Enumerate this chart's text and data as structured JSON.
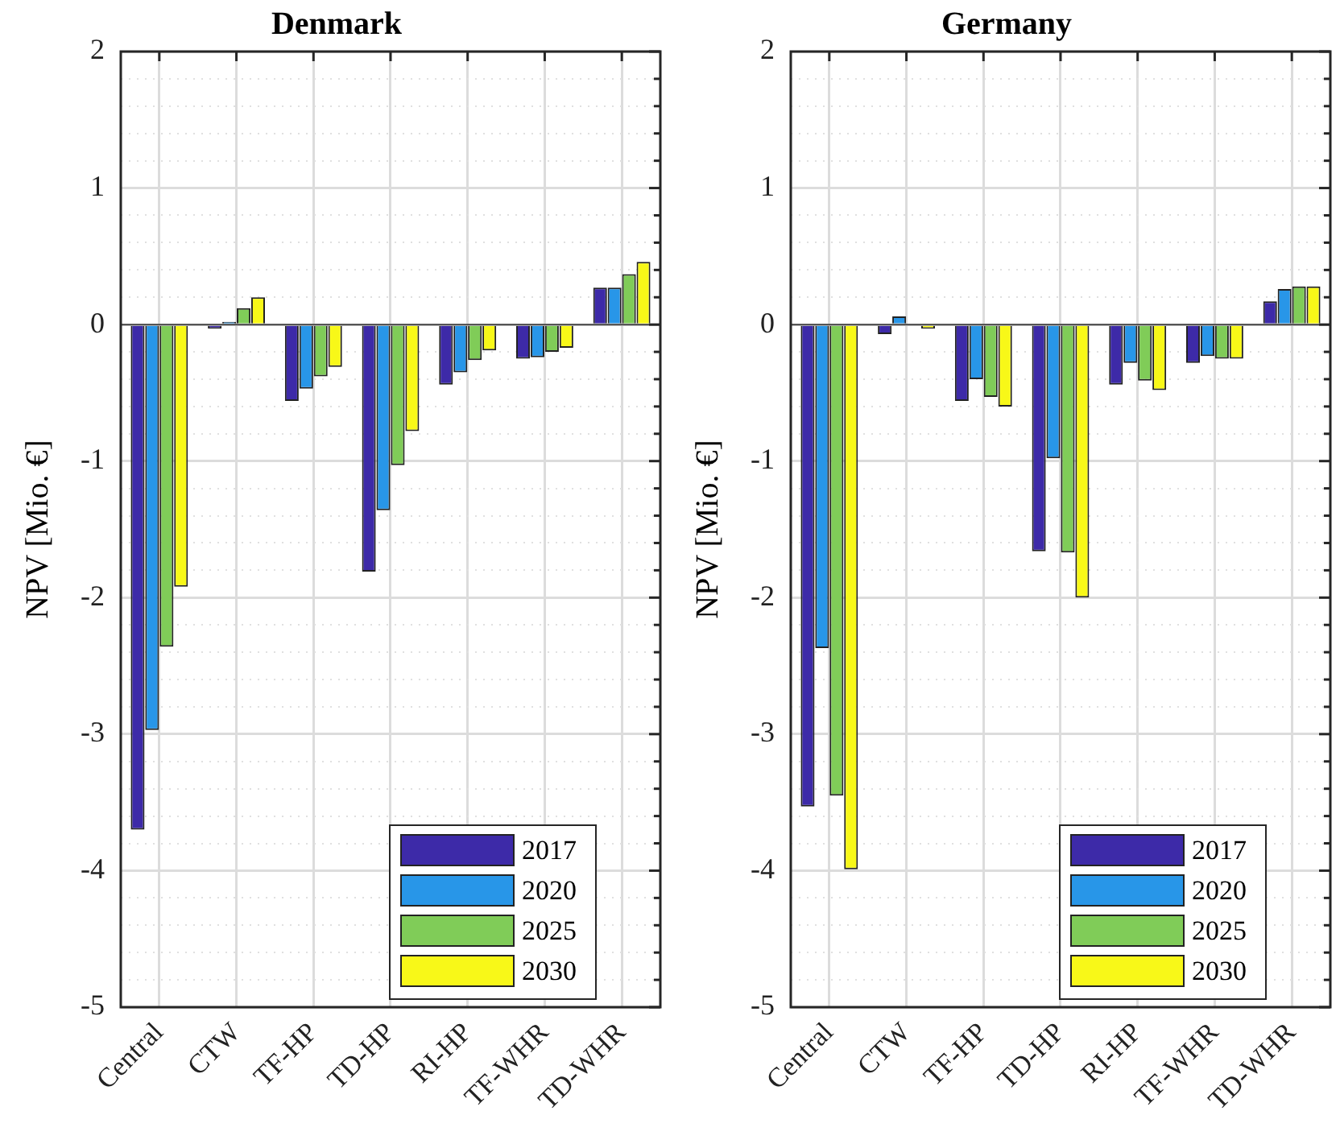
{
  "chart_data": [
    {
      "type": "bar",
      "title": "Denmark",
      "ylabel": "NPV [Mio. €]",
      "categories": [
        "Central",
        "CTW",
        "TF-HP",
        "TD-HP",
        "RI-HP",
        "TF-WHR",
        "TD-WHR"
      ],
      "series": [
        {
          "name": "2017",
          "color": "#3d2aa8",
          "values": [
            -3.7,
            -0.03,
            -0.56,
            -1.81,
            -0.44,
            -0.25,
            0.27
          ]
        },
        {
          "name": "2020",
          "color": "#2896e8",
          "values": [
            -2.97,
            0.02,
            -0.47,
            -1.36,
            -0.35,
            -0.24,
            0.27
          ]
        },
        {
          "name": "2025",
          "color": "#80cc58",
          "values": [
            -2.36,
            0.12,
            -0.38,
            -1.03,
            -0.26,
            -0.2,
            0.37
          ]
        },
        {
          "name": "2030",
          "color": "#f8f818",
          "values": [
            -1.92,
            0.2,
            -0.31,
            -0.78,
            -0.19,
            -0.17,
            0.46
          ]
        }
      ],
      "ylim": [
        -5,
        2
      ],
      "yticks": [
        -5,
        {
          "value": -4.8,
          "label": null
        },
        {
          "value": -4.6,
          "label": null
        },
        {
          "value": -4.4,
          "label": null
        },
        {
          "value": -4.2,
          "label": null
        },
        -4,
        {
          "value": -3.8,
          "label": null
        },
        {
          "value": -3.6,
          "label": null
        },
        {
          "value": -3.4,
          "label": null
        },
        {
          "value": -3.2,
          "label": null
        },
        -3,
        {
          "value": -2.8,
          "label": null
        },
        {
          "value": -2.6,
          "label": null
        },
        {
          "value": -2.4,
          "label": null
        },
        {
          "value": -2.2,
          "label": null
        },
        -2,
        {
          "value": -1.8,
          "label": null
        },
        {
          "value": -1.6,
          "label": null
        },
        {
          "value": -1.4,
          "label": null
        },
        {
          "value": -1.2,
          "label": null
        },
        -1,
        {
          "value": -0.8,
          "label": null
        },
        {
          "value": -0.6,
          "label": null
        },
        {
          "value": -0.4,
          "label": null
        },
        {
          "value": -0.2,
          "label": null
        },
        0,
        {
          "value": 0.2,
          "label": null
        },
        {
          "value": 0.4,
          "label": null
        },
        {
          "value": 0.6,
          "label": null
        },
        {
          "value": 0.8,
          "label": null
        },
        1,
        {
          "value": 1.2,
          "label": null
        },
        {
          "value": 1.4,
          "label": null
        },
        {
          "value": 1.6,
          "label": null
        },
        {
          "value": 1.8,
          "label": null
        },
        2
      ],
      "grid": true,
      "legend": "bottom right"
    },
    {
      "type": "bar",
      "title": "Germany",
      "ylabel": "NPV [Mio. €]",
      "categories": [
        "Central",
        "CTW",
        "TF-HP",
        "TD-HP",
        "RI-HP",
        "TF-WHR",
        "TD-WHR"
      ],
      "series": [
        {
          "name": "2017",
          "color": "#3d2aa8",
          "values": [
            -3.53,
            -0.07,
            -0.56,
            -1.66,
            -0.44,
            -0.28,
            0.17
          ]
        },
        {
          "name": "2020",
          "color": "#2896e8",
          "values": [
            -2.37,
            0.06,
            -0.4,
            -0.98,
            -0.28,
            -0.23,
            0.26
          ]
        },
        {
          "name": "2025",
          "color": "#80cc58",
          "values": [
            -3.45,
            0.0,
            -0.53,
            -1.67,
            -0.41,
            -0.25,
            0.28
          ]
        },
        {
          "name": "2030",
          "color": "#f8f818",
          "values": [
            -3.99,
            -0.03,
            -0.6,
            -2.0,
            -0.48,
            -0.25,
            0.28
          ]
        }
      ],
      "ylim": [
        -5,
        2
      ],
      "yticks": [
        -5,
        {
          "value": -4.8,
          "label": null
        },
        {
          "value": -4.6,
          "label": null
        },
        {
          "value": -4.4,
          "label": null
        },
        {
          "value": -4.2,
          "label": null
        },
        -4,
        {
          "value": -3.8,
          "label": null
        },
        {
          "value": -3.6,
          "label": null
        },
        {
          "value": -3.4,
          "label": null
        },
        {
          "value": -3.2,
          "label": null
        },
        -3,
        {
          "value": -2.8,
          "label": null
        },
        {
          "value": -2.6,
          "label": null
        },
        {
          "value": -2.4,
          "label": null
        },
        {
          "value": -2.2,
          "label": null
        },
        -2,
        {
          "value": -1.8,
          "label": null
        },
        {
          "value": -1.6,
          "label": null
        },
        {
          "value": -1.4,
          "label": null
        },
        {
          "value": -1.2,
          "label": null
        },
        -1,
        {
          "value": -0.8,
          "label": null
        },
        {
          "value": -0.6,
          "label": null
        },
        {
          "value": -0.4,
          "label": null
        },
        {
          "value": -0.2,
          "label": null
        },
        0,
        {
          "value": 0.2,
          "label": null
        },
        {
          "value": 0.4,
          "label": null
        },
        {
          "value": 0.6,
          "label": null
        },
        {
          "value": 0.8,
          "label": null
        },
        1,
        {
          "value": 1.2,
          "label": null
        },
        {
          "value": 1.4,
          "label": null
        },
        {
          "value": 1.6,
          "label": null
        },
        {
          "value": 1.8,
          "label": null
        },
        2
      ],
      "grid": true,
      "legend": "bottom right"
    }
  ]
}
